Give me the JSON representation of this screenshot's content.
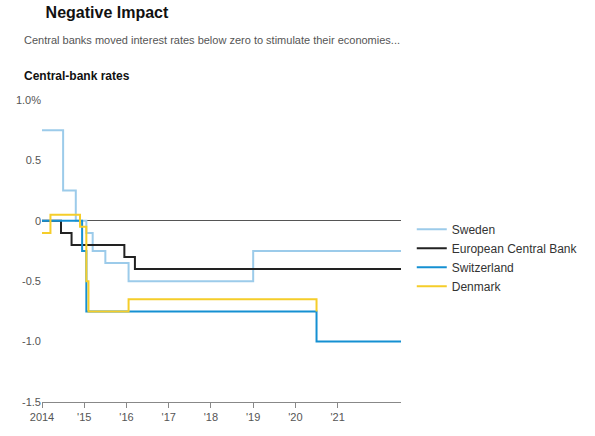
{
  "chart_data": {
    "type": "line",
    "title": "Negative Impact",
    "subtitle": "Central banks moved interest rates below zero to stimulate their economies...",
    "ylabel": "Central-bank rates",
    "line_style": "step",
    "grid": false,
    "legend": "right",
    "xlim": [
      2014,
      2022.5
    ],
    "xticks": [
      2014,
      {
        "value": 2015,
        "label": "'15"
      },
      {
        "value": 2016,
        "label": "'16"
      },
      {
        "value": 2017,
        "label": "'17"
      },
      {
        "value": 2018,
        "label": "'18"
      },
      {
        "value": 2019,
        "label": "'19"
      },
      {
        "value": 2020,
        "label": "'20"
      },
      {
        "value": 2021,
        "label": "'21"
      }
    ],
    "ylim": [
      -1.5,
      1.0
    ],
    "yticks": [
      {
        "value": 1.0,
        "label": "1.0%"
      },
      0.5,
      0,
      -0.5,
      {
        "value": -1.0,
        "label": "-1.0"
      },
      -1.5
    ],
    "series": [
      {
        "name": "Sweden",
        "color": "#9ccbea",
        "x": [
          2014,
          2014.5,
          2014.8,
          2015.05,
          2015.2,
          2015.5,
          2016.05,
          2019.0,
          2022.5
        ],
        "values": [
          0.75,
          0.25,
          0,
          -0.1,
          -0.25,
          -0.35,
          -0.5,
          -0.25,
          -0.25
        ]
      },
      {
        "name": "European Central Bank",
        "color": "#222222",
        "x": [
          2014,
          2014.45,
          2014.7,
          2015.95,
          2016.2,
          2022.5
        ],
        "values": [
          0,
          -0.1,
          -0.2,
          -0.3,
          -0.4,
          -0.4
        ]
      },
      {
        "name": "Switzerland",
        "color": "#1590d2",
        "x": [
          2014,
          2014.95,
          2015.05,
          2020.5,
          2022.5
        ],
        "values": [
          0,
          -0.25,
          -0.75,
          -1.0,
          -1.0
        ]
      },
      {
        "name": "Denmark",
        "color": "#f5cd2a",
        "x": [
          2014,
          2014.2,
          2014.9,
          2015.05,
          2015.1,
          2016.05,
          2020.5
        ],
        "values": [
          -0.1,
          0.05,
          -0.05,
          -0.5,
          -0.75,
          -0.65,
          -0.75
        ]
      }
    ]
  }
}
